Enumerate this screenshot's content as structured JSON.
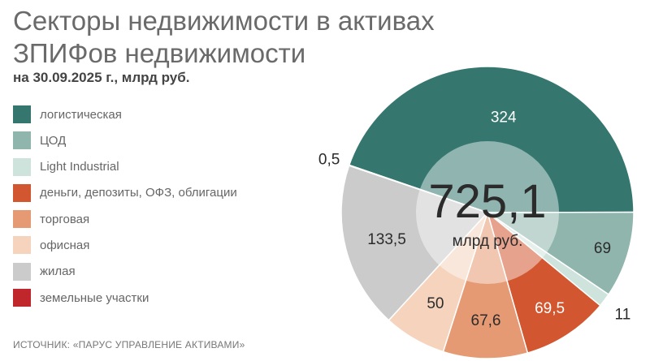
{
  "header": {
    "title": "Секторы недвижимости в активах ЗПИФов недвижимости",
    "subtitle": "на 30.09.2025 г., млрд руб."
  },
  "source": "ИСТОЧНИК: «ПАРУС УПРАВЛЕНИЕ АКТИВАМИ»",
  "chart_data": {
    "type": "pie",
    "title": "Секторы недвижимости в активах ЗПИФов недвижимости",
    "subtitle": "на 30.09.2025 г., млрд руб.",
    "total_label": "725,1",
    "total_unit": "млрд руб.",
    "legend_position": "left",
    "slices": [
      {
        "name": "логистическая",
        "value": 324,
        "label": "324",
        "color": "#35776f",
        "label_color": "#ffffff"
      },
      {
        "name": "ЦОД",
        "value": 69,
        "label": "69",
        "color": "#8fb5ac",
        "label_color": "#2b2b2b"
      },
      {
        "name": "Light Industrial",
        "value": 11,
        "label": "11",
        "color": "#cfe3dd",
        "label_color": "#2b2b2b"
      },
      {
        "name": "деньги, депозиты, ОФЗ, облигации",
        "value": 69.5,
        "label": "69,5",
        "color": "#d2562f",
        "label_color": "#ffffff"
      },
      {
        "name": "торговая",
        "value": 67.6,
        "label": "67,6",
        "color": "#e59a73",
        "label_color": "#2b2b2b"
      },
      {
        "name": "офисная",
        "value": 50,
        "label": "50",
        "color": "#f6d3bd",
        "label_color": "#2b2b2b"
      },
      {
        "name": "жилая",
        "value": 133.5,
        "label": "133,5",
        "color": "#cbcbcb",
        "label_color": "#2b2b2b"
      },
      {
        "name": "земельные участки",
        "value": 0.5,
        "label": "0,5",
        "color": "#c0272d",
        "label_color": "#2b2b2b"
      }
    ]
  }
}
